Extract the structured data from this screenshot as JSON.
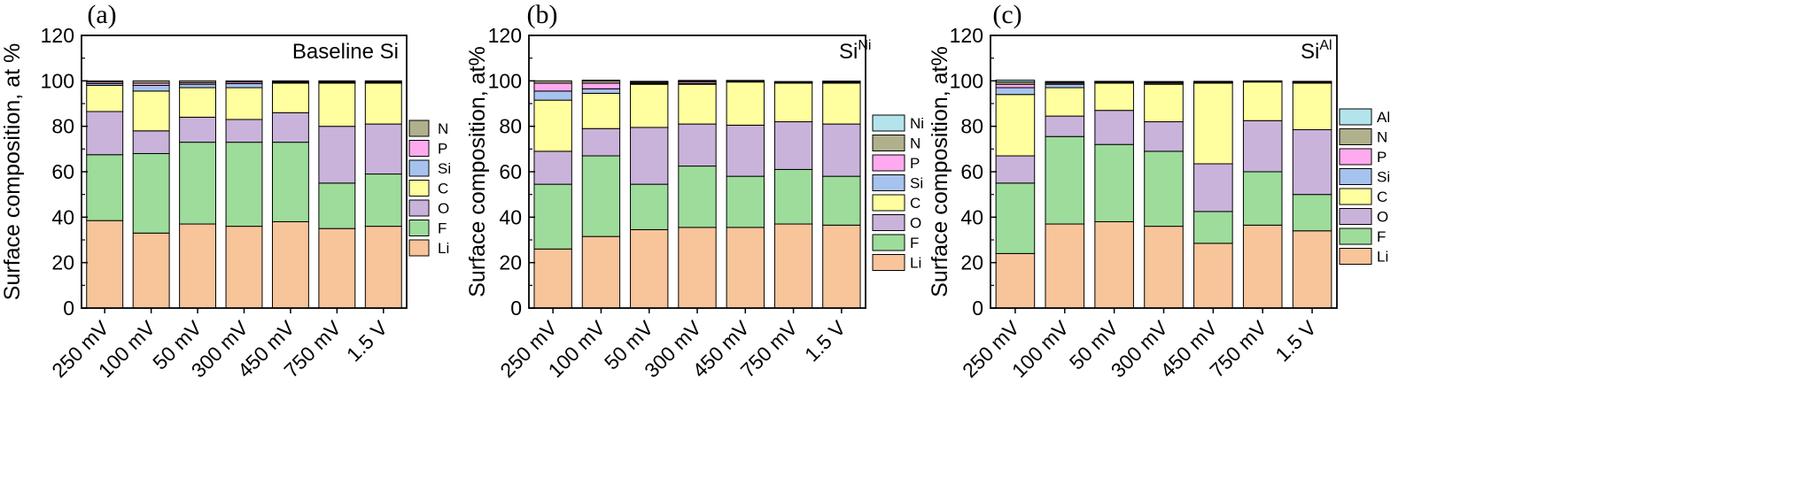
{
  "chart_data": [
    {
      "type": "bar",
      "stacked": true,
      "panel": "(a)",
      "title": "Baseline Si",
      "title_sup": "",
      "ylabel": "Surface composition, at %",
      "ylim": [
        0,
        120
      ],
      "yticks": [
        0,
        20,
        40,
        60,
        80,
        100,
        120
      ],
      "categories": [
        "250 mV",
        "100 mV",
        "50 mV",
        "300 mV",
        "450 mV",
        "750 mV",
        "1.5 V"
      ],
      "legend": {
        "placement": "right",
        "order": [
          "N",
          "P",
          "Si",
          "C",
          "O",
          "F",
          "Li"
        ]
      },
      "series": [
        {
          "name": "Li",
          "color": "#f8c49a",
          "values": [
            38.5,
            33,
            37,
            36,
            38,
            35,
            36
          ]
        },
        {
          "name": "F",
          "color": "#9ddc9a",
          "values": [
            29,
            35,
            36,
            37,
            35,
            20,
            23
          ]
        },
        {
          "name": "O",
          "color": "#c9b3da",
          "values": [
            19,
            10,
            11,
            10,
            13,
            25,
            22
          ]
        },
        {
          "name": "C",
          "color": "#ffff9f",
          "values": [
            11.5,
            17.5,
            13,
            14,
            13,
            19,
            18
          ]
        },
        {
          "name": "Si",
          "color": "#a6c2ee",
          "values": [
            0.8,
            2.5,
            1.5,
            1.8,
            0.4,
            0.4,
            0.4
          ]
        },
        {
          "name": "P",
          "color": "#ffaaee",
          "values": [
            0.7,
            1,
            0.7,
            0.7,
            0.3,
            0.3,
            0.3
          ]
        },
        {
          "name": "N",
          "color": "#b0b08c",
          "values": [
            0.5,
            1,
            0.8,
            0.5,
            0.3,
            0.3,
            0.3
          ]
        }
      ]
    },
    {
      "type": "bar",
      "stacked": true,
      "panel": "(b)",
      "title": "Si",
      "title_sup": "Ni",
      "ylabel": "Surface composition, at%",
      "ylim": [
        0,
        120
      ],
      "yticks": [
        0,
        20,
        40,
        60,
        80,
        100,
        120
      ],
      "categories": [
        "250 mV",
        "100 mV",
        "50 mV",
        "300 mV",
        "450 mV",
        "750 mV",
        "1.5 V"
      ],
      "legend": {
        "placement": "right",
        "order": [
          "Ni",
          "N",
          "P",
          "Si",
          "C",
          "O",
          "F",
          "Li"
        ]
      },
      "series": [
        {
          "name": "Li",
          "color": "#f8c49a",
          "values": [
            26,
            31.5,
            34.5,
            35.5,
            35.5,
            37,
            36.5
          ]
        },
        {
          "name": "F",
          "color": "#9ddc9a",
          "values": [
            28.5,
            35.5,
            20,
            27,
            22.5,
            24,
            21.5
          ]
        },
        {
          "name": "O",
          "color": "#c9b3da",
          "values": [
            14.5,
            12,
            25,
            18.5,
            22.5,
            21,
            23
          ]
        },
        {
          "name": "C",
          "color": "#ffff9f",
          "values": [
            22.5,
            15.5,
            19,
            17.5,
            19,
            17,
            18
          ]
        },
        {
          "name": "Si",
          "color": "#a6c2ee",
          "values": [
            4,
            2,
            0.3,
            0.3,
            0.2,
            0.2,
            0.2
          ]
        },
        {
          "name": "P",
          "color": "#ffaaee",
          "values": [
            3.5,
            2.5,
            0.3,
            0.7,
            0.2,
            0.2,
            0.2
          ]
        },
        {
          "name": "N",
          "color": "#b0b08c",
          "values": [
            1,
            1,
            0.5,
            0.5,
            0.2,
            0.2,
            0.3
          ]
        },
        {
          "name": "Ni",
          "color": "#b3e4ec",
          "values": [
            0,
            0.3,
            0.2,
            0.2,
            0.1,
            0.1,
            0.2
          ]
        }
      ]
    },
    {
      "type": "bar",
      "stacked": true,
      "panel": "(c)",
      "title": "Si",
      "title_sup": "Al",
      "ylabel": "Surface composition, at%",
      "ylim": [
        0,
        120
      ],
      "yticks": [
        0,
        20,
        40,
        60,
        80,
        100,
        120
      ],
      "categories": [
        "250 mV",
        "100 mV",
        "50 mV",
        "300 mV",
        "450 mV",
        "750 mV",
        "1.5 V"
      ],
      "legend": {
        "placement": "right",
        "order": [
          "Al",
          "N",
          "P",
          "Si",
          "C",
          "O",
          "F",
          "Li"
        ]
      },
      "series": [
        {
          "name": "Li",
          "color": "#f8c49a",
          "values": [
            24,
            37,
            38,
            36,
            28.5,
            36.5,
            34
          ]
        },
        {
          "name": "F",
          "color": "#9ddc9a",
          "values": [
            31,
            38.5,
            34,
            33,
            14,
            23.5,
            16
          ]
        },
        {
          "name": "O",
          "color": "#c9b3da",
          "values": [
            12,
            9,
            15,
            13,
            21,
            22.5,
            28.5
          ]
        },
        {
          "name": "C",
          "color": "#ffff9f",
          "values": [
            27,
            12.5,
            12,
            16.5,
            35.5,
            17,
            20.5
          ]
        },
        {
          "name": "Si",
          "color": "#a6c2ee",
          "values": [
            3,
            1.5,
            0.3,
            0.5,
            0.2,
            0.2,
            0.3
          ]
        },
        {
          "name": "P",
          "color": "#ffaaee",
          "values": [
            1.5,
            0.5,
            0.2,
            0.3,
            0.2,
            0.1,
            0.2
          ]
        },
        {
          "name": "N",
          "color": "#b0b08c",
          "values": [
            1,
            0.5,
            0.2,
            0.3,
            0.3,
            0.1,
            0.2
          ]
        },
        {
          "name": "Al",
          "color": "#b3e4ec",
          "values": [
            0.8,
            0.2,
            0.1,
            0.1,
            0.1,
            0.1,
            0.1
          ]
        }
      ]
    }
  ]
}
